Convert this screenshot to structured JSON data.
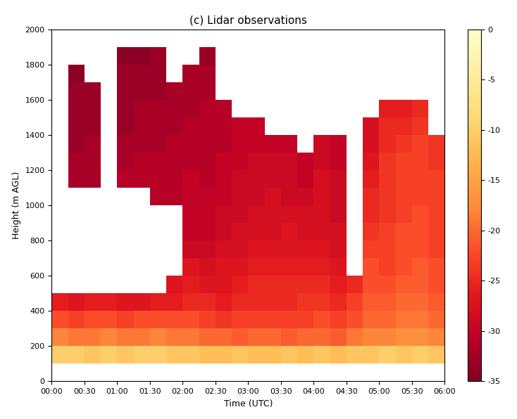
{
  "chart_data": {
    "type": "heatmap",
    "title": "(c) Lidar observations",
    "x_label": "Time (UTC)",
    "y_label": "Height (m AGL)",
    "xlim": [
      0,
      6
    ],
    "ylim": [
      0,
      2000
    ],
    "xticks": [
      {
        "value": 0,
        "label": "00:00"
      },
      {
        "value": 0.5,
        "label": "00:30"
      },
      {
        "value": 1,
        "label": "01:00"
      },
      {
        "value": 1.5,
        "label": "01:30"
      },
      {
        "value": 2,
        "label": "02:00"
      },
      {
        "value": 2.5,
        "label": "02:30"
      },
      {
        "value": 3,
        "label": "03:00"
      },
      {
        "value": 3.5,
        "label": "03:30"
      },
      {
        "value": 4,
        "label": "04:00"
      },
      {
        "value": 4.5,
        "label": "04:30"
      },
      {
        "value": 5,
        "label": "05:00"
      },
      {
        "value": 5.5,
        "label": "05:30"
      },
      {
        "value": 6,
        "label": "06:00"
      }
    ],
    "yticks": [
      0,
      200,
      400,
      600,
      800,
      1000,
      1200,
      1400,
      1600,
      1800,
      2000
    ],
    "x_edges": [
      0,
      0.25,
      0.5,
      0.75,
      1,
      1.25,
      1.5,
      1.75,
      2,
      2.25,
      2.5,
      2.75,
      3,
      3.25,
      3.5,
      3.75,
      4,
      4.25,
      4.5,
      4.75,
      5,
      5.25,
      5.5,
      5.75,
      6
    ],
    "y_edges": [
      0,
      100,
      200,
      300,
      400,
      500,
      600,
      700,
      800,
      900,
      1000,
      1100,
      1200,
      1300,
      1400,
      1500,
      1600,
      1700,
      1800,
      1900,
      2000
    ],
    "cells": [
      [
        null,
        null,
        null,
        null,
        null,
        null,
        null,
        null,
        null,
        null,
        null,
        null,
        null,
        null,
        null,
        null,
        null,
        null,
        null,
        null,
        null,
        null,
        null,
        null
      ],
      [
        -10,
        -10,
        -11,
        -10,
        -11,
        -10,
        -10,
        -11,
        -11,
        -12,
        -12,
        -11,
        -12,
        -12,
        -11,
        -12,
        -11,
        -12,
        -11,
        -11,
        -10,
        -11,
        -10,
        -11
      ],
      [
        -18,
        -19,
        -19,
        -18,
        -19,
        -19,
        -18,
        -19,
        -19,
        -20,
        -20,
        -21,
        -20,
        -20,
        -21,
        -20,
        -20,
        -21,
        -19,
        -18,
        -18,
        -17,
        -17,
        -18
      ],
      [
        -22,
        -23,
        -22,
        -22,
        -23,
        -22,
        -22,
        -22,
        -22,
        -23,
        -24,
        -23,
        -23,
        -23,
        -23,
        -23,
        -22,
        -23,
        -22,
        -20,
        -20,
        -19,
        -19,
        -20
      ],
      [
        -26,
        -27,
        -26,
        -26,
        -27,
        -27,
        -26,
        -26,
        -25,
        -25,
        -26,
        -25,
        -25,
        -25,
        -25,
        -24,
        -24,
        -25,
        -23,
        -21,
        -21,
        -20,
        -20,
        -21
      ],
      [
        null,
        null,
        null,
        null,
        null,
        null,
        null,
        -27,
        -26,
        -27,
        -27,
        -26,
        -25,
        -25,
        -25,
        -25,
        -25,
        -26,
        -25,
        -22,
        -22,
        -21,
        -21,
        -22
      ],
      [
        null,
        null,
        null,
        null,
        null,
        null,
        null,
        null,
        -27,
        -28,
        -27,
        -27,
        -26,
        -26,
        -26,
        -26,
        -26,
        -27,
        null,
        -22,
        -23,
        -22,
        -21,
        -22
      ],
      [
        null,
        null,
        null,
        null,
        null,
        null,
        null,
        null,
        -29,
        -29,
        -28,
        -28,
        -27,
        -27,
        -27,
        -27,
        -27,
        -28,
        null,
        -23,
        -23,
        -22,
        -22,
        -23
      ],
      [
        null,
        null,
        null,
        null,
        null,
        null,
        null,
        null,
        -30,
        -30,
        -29,
        -28,
        -28,
        -28,
        -27,
        -28,
        -28,
        -28,
        null,
        -24,
        -23,
        -22,
        -22,
        -23
      ],
      [
        null,
        null,
        null,
        null,
        null,
        null,
        null,
        null,
        -30,
        -30,
        -29,
        -29,
        -28,
        -28,
        -28,
        -28,
        -28,
        -29,
        null,
        -25,
        -24,
        -23,
        -22,
        -23
      ],
      [
        null,
        null,
        null,
        null,
        null,
        null,
        -31,
        -31,
        -30,
        -30,
        -30,
        -29,
        -29,
        -28,
        -29,
        -29,
        -28,
        -29,
        null,
        -25,
        -24,
        -23,
        -23,
        -23
      ],
      [
        null,
        -32,
        -32,
        null,
        -31,
        -31,
        -31,
        -31,
        -30,
        -31,
        -30,
        -29,
        -29,
        -29,
        -29,
        -30,
        -28,
        -29,
        null,
        -26,
        -24,
        -23,
        -23,
        -23
      ],
      [
        null,
        -32,
        -32,
        null,
        -32,
        -31,
        -31,
        -31,
        -31,
        -31,
        -30,
        -30,
        -29,
        -29,
        -29,
        -30,
        -29,
        -30,
        null,
        -27,
        -24,
        -23,
        -23,
        -24
      ],
      [
        null,
        -33,
        -32,
        null,
        -32,
        -32,
        -32,
        -31,
        -31,
        -31,
        -31,
        -30,
        -30,
        -30,
        -30,
        null,
        -29,
        -30,
        null,
        -28,
        -25,
        -24,
        -23,
        -24
      ],
      [
        null,
        -33,
        -33,
        null,
        -33,
        -32,
        -32,
        -32,
        -31,
        -31,
        -31,
        -30,
        -30,
        null,
        null,
        null,
        null,
        null,
        null,
        -28,
        -25,
        -25,
        -24,
        null
      ],
      [
        null,
        -33,
        -33,
        null,
        -33,
        -32,
        -32,
        -32,
        -32,
        -31,
        -31,
        null,
        null,
        null,
        null,
        null,
        null,
        null,
        null,
        null,
        -26,
        -26,
        -25,
        null
      ],
      [
        null,
        -33,
        -33,
        null,
        -33,
        -33,
        -33,
        -32,
        -32,
        -32,
        null,
        null,
        null,
        null,
        null,
        null,
        null,
        null,
        null,
        null,
        null,
        null,
        null,
        null
      ],
      [
        null,
        -34,
        null,
        null,
        -33,
        -33,
        -33,
        null,
        -32,
        -32,
        null,
        null,
        null,
        null,
        null,
        null,
        null,
        null,
        null,
        null,
        null,
        null,
        null,
        null
      ],
      [
        null,
        null,
        null,
        null,
        -34,
        -34,
        -33,
        null,
        null,
        -33,
        null,
        null,
        null,
        null,
        null,
        null,
        null,
        null,
        null,
        null,
        null,
        null,
        null,
        null
      ],
      [
        null,
        null,
        null,
        null,
        null,
        null,
        null,
        null,
        null,
        null,
        null,
        null,
        null,
        null,
        null,
        null,
        null,
        null,
        null,
        null,
        null,
        null,
        null,
        null
      ]
    ],
    "colorbar_range": [
      -35,
      0
    ],
    "colorbar_ticks": [
      0,
      -5,
      -10,
      -15,
      -20,
      -25,
      -30,
      -35
    ]
  }
}
